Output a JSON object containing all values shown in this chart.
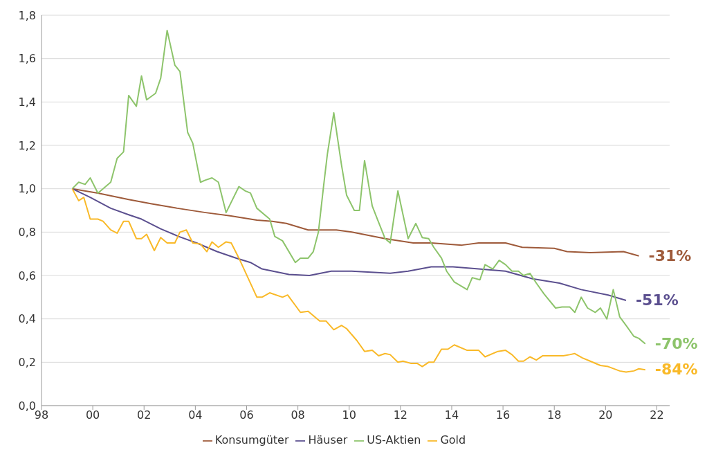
{
  "chart_data": {
    "type": "line",
    "xlim": [
      1998,
      2022.5
    ],
    "xticks": [
      {
        "value": 1998,
        "label": "98"
      },
      {
        "value": 2000,
        "label": "00"
      },
      {
        "value": 2002,
        "label": "02"
      },
      {
        "value": 2004,
        "label": "04"
      },
      {
        "value": 2006,
        "label": "06"
      },
      {
        "value": 2008,
        "label": "08"
      },
      {
        "value": 2010,
        "label": "10"
      },
      {
        "value": 2012,
        "label": "12"
      },
      {
        "value": 2014,
        "label": "14"
      },
      {
        "value": 2016,
        "label": "16"
      },
      {
        "value": 2018,
        "label": "18"
      },
      {
        "value": 2020,
        "label": "20"
      },
      {
        "value": 2022,
        "label": "22"
      }
    ],
    "ylim": [
      0,
      1.8
    ],
    "yticks": [
      {
        "value": 0,
        "label": "0,0"
      },
      {
        "value": 0.2,
        "label": "0,2"
      },
      {
        "value": 0.4,
        "label": "0,4"
      },
      {
        "value": 0.6,
        "label": "0,6"
      },
      {
        "value": 0.8,
        "label": "0,8"
      },
      {
        "value": 1,
        "label": "1,0"
      },
      {
        "value": 1.2,
        "label": "1,2"
      },
      {
        "value": 1.4,
        "label": "1,4"
      },
      {
        "value": 1.6,
        "label": "1,6"
      },
      {
        "value": 1.8,
        "label": "1,8"
      }
    ],
    "grid": "y",
    "legend": "bottom",
    "marker": "none",
    "line_style": "solid",
    "series": [
      {
        "name": "Konsumgüter",
        "color": "#9e5a3a",
        "x": [
          1999.2,
          2000.2,
          2001.4,
          2002.3,
          2003.3,
          2004.4,
          2005.35,
          2006.4,
          2007.0,
          2007.55,
          2008.4,
          2009.5,
          2010.1,
          2011.4,
          2012.5,
          2013.2,
          2014.4,
          2015.05,
          2016.1,
          2016.75,
          2018.0,
          2018.5,
          2019.4,
          2020.7,
          2021.3
        ],
        "values": [
          1.0,
          0.98,
          0.95,
          0.93,
          0.91,
          0.89,
          0.875,
          0.855,
          0.85,
          0.84,
          0.81,
          0.81,
          0.8,
          0.77,
          0.75,
          0.75,
          0.74,
          0.75,
          0.75,
          0.73,
          0.725,
          0.71,
          0.705,
          0.71,
          0.69
        ]
      },
      {
        "name": "Häuser",
        "color": "#5b4f8f",
        "x": [
          1999.2,
          1999.9,
          2000.7,
          2001.4,
          2001.9,
          2002.65,
          2003.35,
          2004.05,
          2004.85,
          2005.6,
          2006.15,
          2006.6,
          2007.65,
          2008.45,
          2009.3,
          2010.1,
          2011.6,
          2012.3,
          2013.2,
          2014.05,
          2015.05,
          2016.1,
          2017.15,
          2018.2,
          2019.05,
          2020.1,
          2020.8
        ],
        "values": [
          1.0,
          0.96,
          0.91,
          0.88,
          0.86,
          0.815,
          0.78,
          0.75,
          0.71,
          0.68,
          0.66,
          0.63,
          0.605,
          0.6,
          0.62,
          0.62,
          0.61,
          0.62,
          0.64,
          0.64,
          0.63,
          0.62,
          0.585,
          0.565,
          0.535,
          0.51,
          0.485
        ]
      },
      {
        "name": "US-Aktien",
        "color": "#8dc46b",
        "x": [
          1999.2,
          1999.45,
          1999.7,
          1999.9,
          2000.2,
          2000.7,
          2000.95,
          2001.2,
          2001.4,
          2001.7,
          2001.9,
          2002.1,
          2002.45,
          2002.65,
          2002.9,
          2003.2,
          2003.4,
          2003.7,
          2003.9,
          2004.2,
          2004.4,
          2004.65,
          2004.9,
          2005.2,
          2005.7,
          2005.95,
          2006.15,
          2006.4,
          2006.9,
          2007.1,
          2007.4,
          2007.9,
          2008.1,
          2008.4,
          2008.6,
          2008.8,
          2009.0,
          2009.15,
          2009.4,
          2009.7,
          2009.9,
          2010.2,
          2010.4,
          2010.6,
          2010.9,
          2011.1,
          2011.4,
          2011.6,
          2011.9,
          2012.1,
          2012.3,
          2012.6,
          2012.85,
          2013.1,
          2013.3,
          2013.6,
          2013.8,
          2014.1,
          2014.6,
          2014.8,
          2015.1,
          2015.3,
          2015.6,
          2015.85,
          2016.1,
          2016.35,
          2016.6,
          2016.8,
          2017.05,
          2017.3,
          2017.6,
          2018.05,
          2018.3,
          2018.6,
          2018.8,
          2019.05,
          2019.3,
          2019.6,
          2019.8,
          2020.05,
          2020.3,
          2020.55,
          2020.8,
          2021.1,
          2021.3,
          2021.55
        ],
        "values": [
          1.0,
          1.03,
          1.02,
          1.05,
          0.98,
          1.03,
          1.14,
          1.17,
          1.43,
          1.38,
          1.52,
          1.41,
          1.44,
          1.51,
          1.73,
          1.57,
          1.54,
          1.26,
          1.21,
          1.03,
          1.04,
          1.05,
          1.03,
          0.89,
          1.01,
          0.99,
          0.98,
          0.91,
          0.86,
          0.78,
          0.76,
          0.66,
          0.68,
          0.68,
          0.71,
          0.8,
          1.01,
          1.16,
          1.35,
          1.11,
          0.97,
          0.9,
          0.9,
          1.13,
          0.92,
          0.86,
          0.77,
          0.75,
          0.99,
          0.88,
          0.77,
          0.84,
          0.775,
          0.77,
          0.73,
          0.68,
          0.62,
          0.57,
          0.535,
          0.59,
          0.58,
          0.65,
          0.63,
          0.67,
          0.65,
          0.62,
          0.62,
          0.6,
          0.61,
          0.565,
          0.515,
          0.45,
          0.455,
          0.455,
          0.43,
          0.5,
          0.45,
          0.43,
          0.45,
          0.4,
          0.535,
          0.41,
          0.37,
          0.32,
          0.31,
          0.285
        ]
      },
      {
        "name": "Gold",
        "color": "#f9b928",
        "x": [
          1999.2,
          1999.45,
          1999.65,
          1999.9,
          2000.2,
          2000.4,
          2000.7,
          2000.95,
          2001.2,
          2001.4,
          2001.7,
          2001.9,
          2002.1,
          2002.4,
          2002.65,
          2002.9,
          2003.2,
          2003.4,
          2003.65,
          2003.9,
          2004.2,
          2004.45,
          2004.65,
          2004.9,
          2005.2,
          2005.4,
          2005.7,
          2006.4,
          2006.6,
          2006.9,
          2007.4,
          2007.6,
          2008.1,
          2008.4,
          2008.85,
          2009.1,
          2009.4,
          2009.7,
          2009.9,
          2010.3,
          2010.6,
          2010.9,
          2011.15,
          2011.4,
          2011.6,
          2011.9,
          2012.1,
          2012.4,
          2012.65,
          2012.85,
          2013.1,
          2013.3,
          2013.6,
          2013.85,
          2014.1,
          2014.6,
          2015.05,
          2015.3,
          2015.8,
          2016.1,
          2016.35,
          2016.6,
          2016.8,
          2017.05,
          2017.3,
          2017.55,
          2018.35,
          2018.6,
          2018.8,
          2019.1,
          2019.4,
          2019.8,
          2020.1,
          2020.55,
          2020.8,
          2021.1,
          2021.3,
          2021.55
        ],
        "values": [
          1.0,
          0.945,
          0.96,
          0.86,
          0.86,
          0.85,
          0.81,
          0.795,
          0.85,
          0.85,
          0.77,
          0.77,
          0.79,
          0.715,
          0.775,
          0.75,
          0.75,
          0.8,
          0.81,
          0.75,
          0.745,
          0.71,
          0.755,
          0.73,
          0.755,
          0.75,
          0.68,
          0.5,
          0.5,
          0.52,
          0.5,
          0.51,
          0.43,
          0.435,
          0.39,
          0.39,
          0.35,
          0.37,
          0.355,
          0.3,
          0.25,
          0.255,
          0.23,
          0.24,
          0.235,
          0.2,
          0.205,
          0.195,
          0.195,
          0.18,
          0.2,
          0.2,
          0.26,
          0.26,
          0.28,
          0.255,
          0.255,
          0.225,
          0.25,
          0.255,
          0.235,
          0.205,
          0.205,
          0.225,
          0.21,
          0.23,
          0.23,
          0.235,
          0.24,
          0.22,
          0.205,
          0.185,
          0.18,
          0.16,
          0.155,
          0.16,
          0.17,
          0.165
        ]
      }
    ],
    "annotations": [
      {
        "text": "-31%",
        "x": 2021.3,
        "y": 0.69
      },
      {
        "text": "-51%",
        "x": 2020.8,
        "y": 0.485
      },
      {
        "text": "-70%",
        "x": 2021.55,
        "y": 0.285
      },
      {
        "text": "-84%",
        "x": 2021.55,
        "y": 0.165
      }
    ]
  }
}
